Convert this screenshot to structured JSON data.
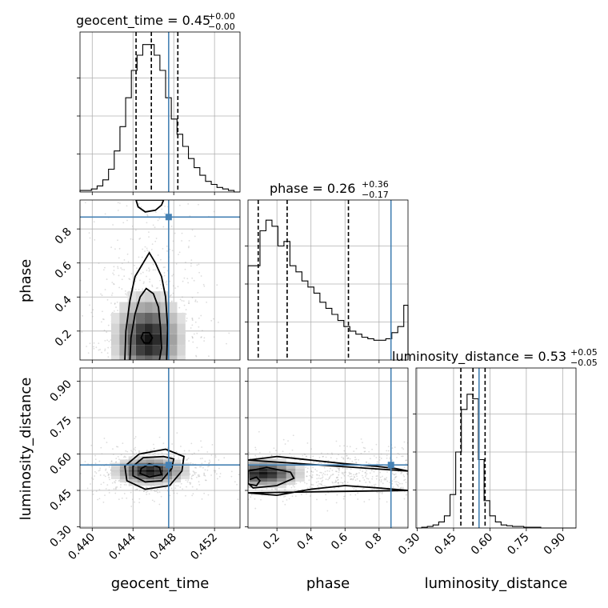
{
  "chart_data": {
    "type": "corner",
    "parameters": [
      "geocent_time",
      "phase",
      "luminosity_distance"
    ],
    "truths": {
      "geocent_time": 0.4475,
      "phase": 0.87,
      "luminosity_distance": 0.555
    },
    "colors": {
      "truth": "#4682b4",
      "hist": "#000000",
      "grid": "#b0b0b0",
      "points": "#9e9e9e"
    },
    "grid": true,
    "titles": {
      "geocent_time": {
        "name": "geocent_time",
        "value": "0.45",
        "plus": "+0.00",
        "minus": "−0.00"
      },
      "phase": {
        "name": "phase",
        "value": "0.26",
        "plus": "+0.36",
        "minus": "−0.17"
      },
      "luminosity_distance": {
        "name": "luminosity_distance",
        "value": "0.53",
        "plus": "+0.05",
        "minus": "−0.05"
      }
    },
    "ranges": {
      "geocent_time": [
        0.4388,
        0.4545
      ],
      "phase": [
        0.03,
        0.97
      ],
      "luminosity_distance": [
        0.295,
        0.955
      ]
    },
    "ticks": {
      "geocent_time": [
        "0.440",
        "0.444",
        "0.448",
        "0.452"
      ],
      "phase": [
        "0.2",
        "0.4",
        "0.6",
        "0.8"
      ],
      "luminosity_distance": [
        "0.30",
        "0.45",
        "0.60",
        "0.75",
        "0.90"
      ]
    },
    "diagonal": {
      "geocent_time": {
        "bin_edges": [
          0.4388,
          0.43936,
          0.43992,
          0.44048,
          0.44104,
          0.4416,
          0.44216,
          0.44272,
          0.44328,
          0.44384,
          0.4444,
          0.44496,
          0.44552,
          0.44608,
          0.44664,
          0.4472,
          0.44776,
          0.44832,
          0.44888,
          0.44944,
          0.45,
          0.45056,
          0.45112,
          0.45168,
          0.45224,
          0.4528,
          0.45336,
          0.45392,
          0.4545
        ],
        "counts": [
          1,
          1,
          2,
          4,
          8,
          15,
          27,
          43,
          62,
          80,
          90,
          97,
          97,
          90,
          80,
          62,
          48,
          38,
          30,
          22,
          16,
          11,
          7,
          5,
          3,
          2,
          1,
          0
        ],
        "ymax": 100,
        "quantiles": [
          0.4443,
          0.4458,
          0.4484
        ]
      },
      "phase": {
        "bin_edges": [
          0.03,
          0.0652,
          0.1004,
          0.1356,
          0.1708,
          0.206,
          0.2412,
          0.2764,
          0.3116,
          0.3468,
          0.382,
          0.4172,
          0.4524,
          0.4876,
          0.5228,
          0.558,
          0.5932,
          0.6284,
          0.6636,
          0.6988,
          0.734,
          0.7692,
          0.8044,
          0.8396,
          0.8748,
          0.91,
          0.9452,
          0.97
        ],
        "counts": [
          62,
          62,
          85,
          92,
          88,
          75,
          78,
          62,
          58,
          52,
          48,
          44,
          38,
          34,
          30,
          26,
          22,
          19,
          17,
          15,
          14,
          13,
          13,
          14,
          18,
          22,
          36
        ],
        "ymax": 100,
        "quantiles": [
          0.09,
          0.26,
          0.62
        ]
      },
      "luminosity_distance": {
        "bin_edges": [
          0.295,
          0.3184,
          0.3418,
          0.3652,
          0.3886,
          0.412,
          0.4354,
          0.4588,
          0.4822,
          0.5056,
          0.529,
          0.5524,
          0.5758,
          0.5992,
          0.6226,
          0.646,
          0.6694,
          0.6928,
          0.7162,
          0.7396,
          0.763,
          0.7864,
          0.8098,
          0.8332,
          0.8566,
          0.88,
          0.9034,
          0.955
        ],
        "counts": [
          0,
          0.5,
          1,
          2,
          4,
          8,
          22,
          50,
          78,
          88,
          85,
          45,
          18,
          8,
          4,
          2,
          1.5,
          1,
          1,
          0.5,
          0.5,
          0.5,
          0,
          0,
          0,
          0,
          0
        ],
        "ymax": 100,
        "quantiles": [
          0.48,
          0.53,
          0.58
        ]
      }
    },
    "pairs": [
      {
        "x": "geocent_time",
        "y": "phase",
        "density": {
          "x_center": 0.4455,
          "y_center": 0.15,
          "sx": 0.0018,
          "sy": 0.14,
          "contours": [
            [
              [
                0.4437,
                0.03
              ],
              [
                0.4438,
                0.16
              ],
              [
                0.4442,
                0.3
              ],
              [
                0.4447,
                0.4
              ],
              [
                0.4453,
                0.45
              ],
              [
                0.446,
                0.42
              ],
              [
                0.4465,
                0.34
              ],
              [
                0.4467,
                0.22
              ],
              [
                0.4468,
                0.1
              ],
              [
                0.4466,
                0.03
              ]
            ],
            [
              [
                0.4432,
                0.03
              ],
              [
                0.4433,
                0.2
              ],
              [
                0.4437,
                0.38
              ],
              [
                0.4442,
                0.52
              ],
              [
                0.445,
                0.6
              ],
              [
                0.4456,
                0.66
              ],
              [
                0.4462,
                0.6
              ],
              [
                0.4468,
                0.52
              ],
              [
                0.4472,
                0.4
              ],
              [
                0.4474,
                0.22
              ],
              [
                0.4473,
                0.03
              ]
            ],
            [
              [
                0.445,
                0.19
              ],
              [
                0.4448,
                0.16
              ],
              [
                0.4451,
                0.13
              ],
              [
                0.4456,
                0.13
              ],
              [
                0.4459,
                0.16
              ],
              [
                0.4456,
                0.19
              ]
            ]
          ],
          "top_contour": [
            [
              0.4443,
              0.97
            ],
            [
              0.4445,
              0.93
            ],
            [
              0.4452,
              0.9
            ],
            [
              0.4462,
              0.91
            ],
            [
              0.4468,
              0.94
            ],
            [
              0.447,
              0.97
            ]
          ]
        }
      },
      {
        "x": "geocent_time",
        "y": "luminosity_distance",
        "density": {
          "x_center": 0.4457,
          "y_center": 0.53,
          "sx": 0.0019,
          "sy": 0.03,
          "contours": [
            [
              [
                0.4448,
                0.54
              ],
              [
                0.4456,
                0.56
              ],
              [
                0.4466,
                0.545
              ],
              [
                0.4468,
                0.515
              ],
              [
                0.4456,
                0.505
              ],
              [
                0.4447,
                0.52
              ]
            ],
            [
              [
                0.444,
                0.55
              ],
              [
                0.445,
                0.585
              ],
              [
                0.447,
                0.59
              ],
              [
                0.448,
                0.58
              ],
              [
                0.4478,
                0.54
              ],
              [
                0.4468,
                0.49
              ],
              [
                0.4452,
                0.485
              ],
              [
                0.444,
                0.51
              ]
            ],
            [
              [
                0.4432,
                0.55
              ],
              [
                0.4446,
                0.6
              ],
              [
                0.4472,
                0.62
              ],
              [
                0.449,
                0.59
              ],
              [
                0.4488,
                0.53
              ],
              [
                0.4476,
                0.47
              ],
              [
                0.4452,
                0.455
              ],
              [
                0.4434,
                0.49
              ]
            ]
          ]
        }
      },
      {
        "x": "phase",
        "y": "luminosity_distance",
        "density": {
          "x_center": 0.12,
          "y_center": 0.52,
          "sx": 0.12,
          "sy": 0.03,
          "contours": [
            [
              [
                0.04,
                0.495
              ],
              [
                0.08,
                0.505
              ],
              [
                0.1,
                0.49
              ],
              [
                0.08,
                0.47
              ],
              [
                0.04,
                0.475
              ]
            ],
            [
              [
                0.03,
                0.53
              ],
              [
                0.14,
                0.545
              ],
              [
                0.28,
                0.525
              ],
              [
                0.3,
                0.5
              ],
              [
                0.2,
                0.47
              ],
              [
                0.06,
                0.46
              ],
              [
                0.03,
                0.48
              ]
            ],
            [
              [
                0.03,
                0.575
              ],
              [
                0.2,
                0.59
              ],
              [
                0.4,
                0.575
              ],
              [
                0.6,
                0.56
              ],
              [
                0.78,
                0.55
              ],
              [
                0.9,
                0.54
              ],
              [
                0.97,
                0.53
              ]
            ],
            [
              [
                0.97,
                0.45
              ],
              [
                0.8,
                0.46
              ],
              [
                0.6,
                0.47
              ],
              [
                0.4,
                0.455
              ],
              [
                0.2,
                0.43
              ],
              [
                0.03,
                0.44
              ]
            ]
          ]
        }
      }
    ]
  }
}
